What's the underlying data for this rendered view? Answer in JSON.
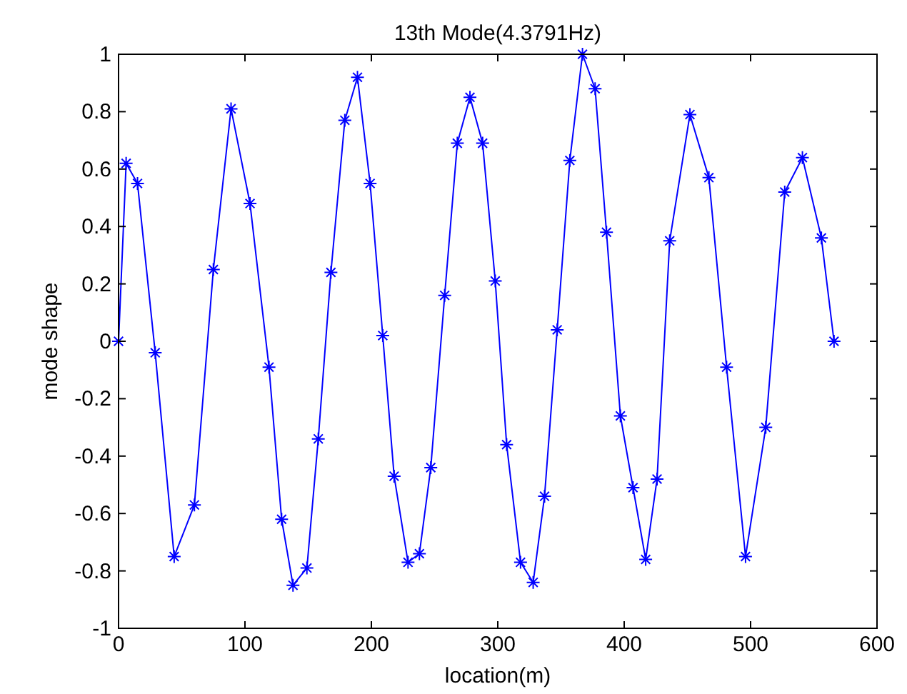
{
  "chart_data": {
    "type": "line",
    "title": "13th Mode(4.3791Hz)",
    "xlabel": "location(m)",
    "ylabel": "mode shape",
    "xlim": [
      0,
      600
    ],
    "xticks": [
      0,
      100,
      200,
      300,
      400,
      500,
      600
    ],
    "ylim": [
      -1,
      1
    ],
    "yticks": [
      -1,
      -0.8,
      -0.6,
      -0.4,
      -0.2,
      0,
      0.2,
      0.4,
      0.6,
      0.8,
      1
    ],
    "marker": "cross",
    "line_style": "solid",
    "grid": false,
    "series": [
      {
        "color": "#0000ff",
        "x": [
          0,
          6,
          15,
          29,
          44,
          60,
          75,
          89,
          104,
          119,
          129,
          138,
          149,
          158,
          168,
          179,
          189,
          199,
          209,
          218,
          229,
          238,
          247,
          258,
          268,
          278,
          288,
          298,
          307,
          318,
          328,
          337,
          347,
          357,
          367,
          377,
          386,
          397,
          407,
          417,
          426,
          436,
          452,
          467,
          481,
          496,
          512,
          527,
          541,
          556,
          566
        ],
        "values": [
          0,
          0.62,
          0.55,
          -0.04,
          -0.75,
          -0.57,
          0.25,
          0.81,
          0.48,
          -0.09,
          -0.62,
          -0.85,
          -0.79,
          -0.34,
          0.24,
          0.77,
          0.92,
          0.55,
          0.02,
          -0.47,
          -0.77,
          -0.74,
          -0.44,
          0.16,
          0.69,
          0.85,
          0.69,
          0.21,
          -0.36,
          -0.77,
          -0.84,
          -0.54,
          0.04,
          0.63,
          1.0,
          0.88,
          0.38,
          -0.26,
          -0.51,
          -0.76,
          -0.48,
          0.35,
          0.79,
          0.57,
          -0.09,
          -0.75,
          -0.3,
          0.52,
          0.64,
          0.36,
          0
        ]
      }
    ]
  }
}
